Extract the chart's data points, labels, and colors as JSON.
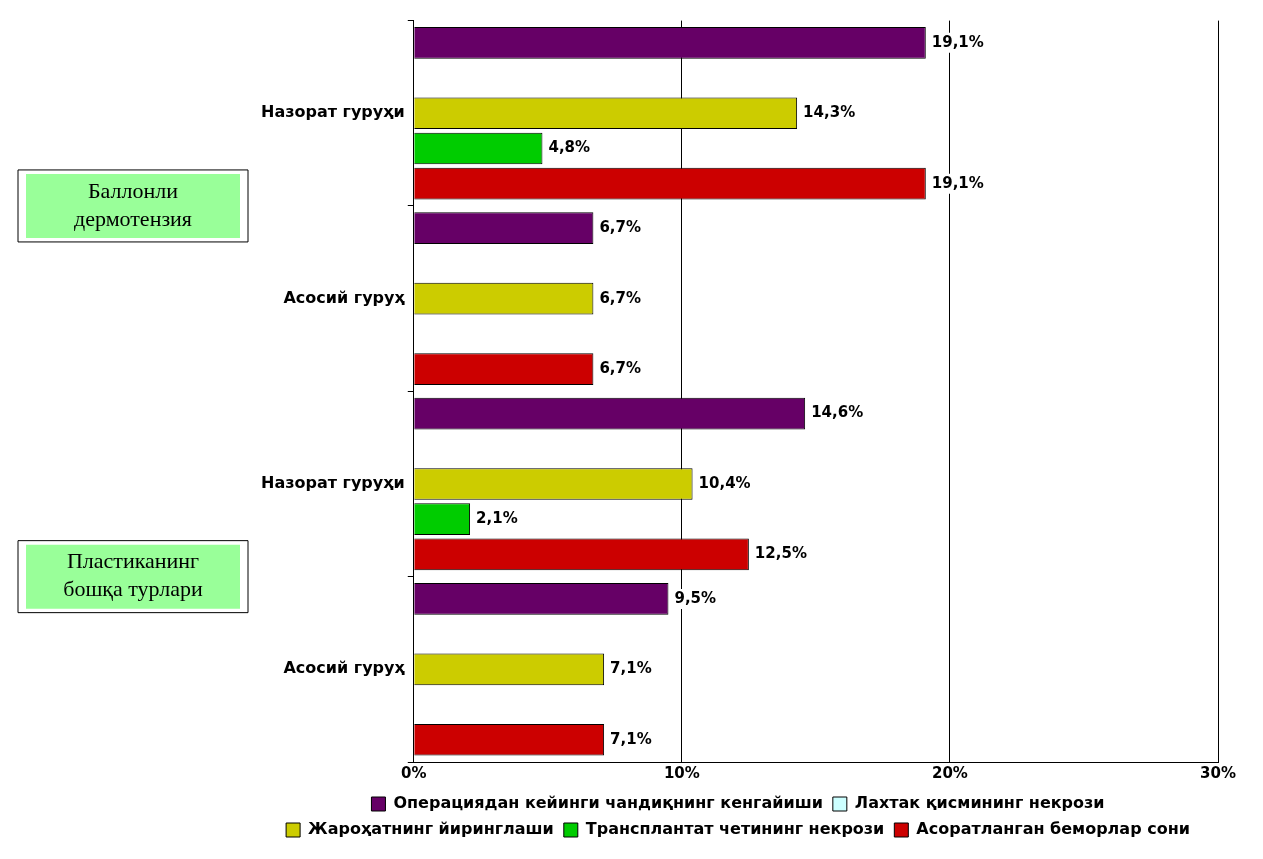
{
  "chart_data": {
    "type": "bar",
    "orientation": "horizontal",
    "categories": [
      "Назорат гуруҳи",
      "Асосий гуруҳ",
      "Назорат гуруҳи",
      "Асосий гуруҳ"
    ],
    "series": [
      {
        "name": "Операциядан кейинги чандиқнинг кенгайиши",
        "color": "#660066",
        "values": [
          19.1,
          6.7,
          14.6,
          9.5
        ],
        "value_labels": [
          "19,1%",
          "6,7%",
          "14,6%",
          "9,5%"
        ]
      },
      {
        "name": "Лахтак қисмининг некрози",
        "color": "#ccffff",
        "values": [
          null,
          null,
          null,
          null
        ]
      },
      {
        "name": "Жароҳатнинг йиринглаши",
        "color": "#cccc00",
        "values": [
          14.3,
          6.7,
          10.4,
          7.1
        ],
        "value_labels": [
          "14,3%",
          "6,7%",
          "10,4%",
          "7,1%"
        ]
      },
      {
        "name": "Трансплантат четининг некрози",
        "color": "#00cc00",
        "values": [
          4.8,
          null,
          2.1,
          null
        ],
        "value_labels": [
          "4,8%",
          null,
          "2,1%",
          null
        ]
      },
      {
        "name": "Асоратланган беморлар сони",
        "color": "#cc0000",
        "values": [
          19.1,
          6.7,
          12.5,
          7.1
        ],
        "value_labels": [
          "19,1%",
          "6,7%",
          "12,5%",
          "7,1%"
        ]
      }
    ],
    "xlim": [
      0,
      30
    ],
    "xticks": [
      {
        "value": 0,
        "label": "0%"
      },
      {
        "value": 10,
        "label": "10%"
      },
      {
        "value": 20,
        "label": "20%"
      },
      {
        "value": 30,
        "label": "30%"
      }
    ],
    "grid": "x",
    "legend": "bottom",
    "annotations": [
      "Баллонли дермотензия",
      "Пластиканинг бошқа турлари"
    ]
  }
}
